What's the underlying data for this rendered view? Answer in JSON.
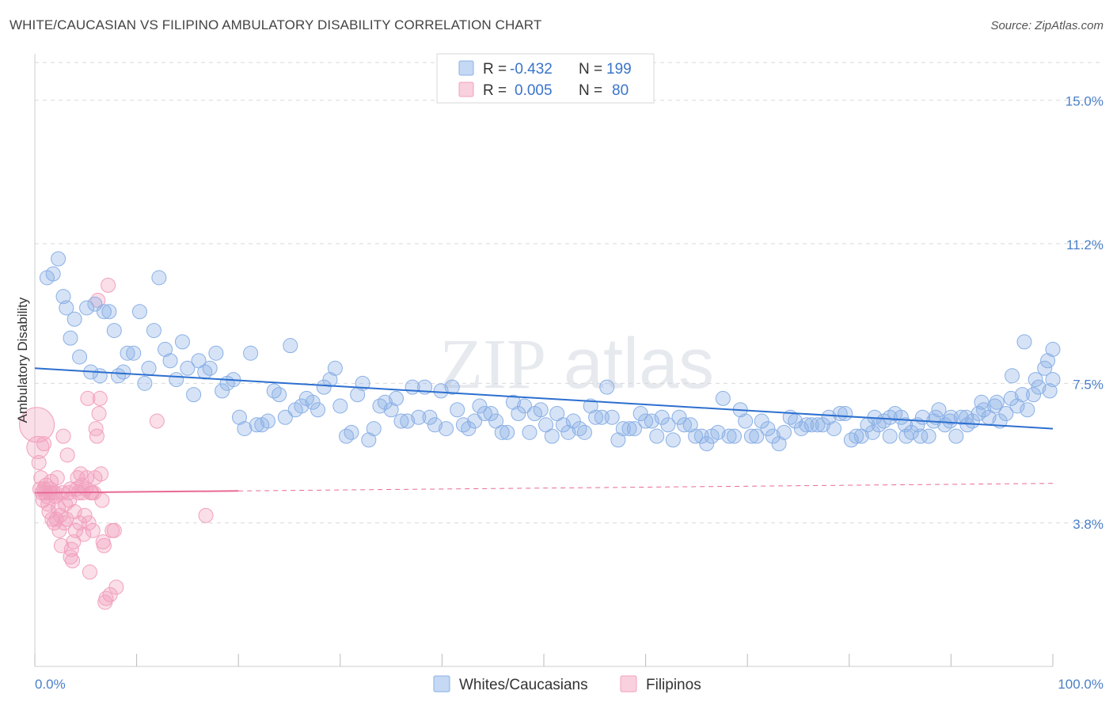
{
  "header": {
    "title": "WHITE/CAUCASIAN VS FILIPINO AMBULATORY DISABILITY CORRELATION CHART",
    "source": "Source: ZipAtlas.com"
  },
  "watermark": {
    "zip": "ZIP",
    "atlas": "atlas"
  },
  "legend": {
    "rows": [
      {
        "r_label": "R =",
        "r_value": "-0.432",
        "n_label": "N =",
        "n_value": "199",
        "color": "#8ab0e6"
      },
      {
        "r_label": "R =",
        "r_value": "0.005",
        "n_label": "N =",
        "n_value": "80",
        "color": "#f2a0bc"
      }
    ]
  },
  "bottom_legend": [
    {
      "label": "Whites/Caucasians",
      "color": "#8ab0e6"
    },
    {
      "label": "Filipinos",
      "color": "#f2a0bc"
    }
  ],
  "chart_data": {
    "type": "scatter",
    "title": "WHITE/CAUCASIAN VS FILIPINO AMBULATORY DISABILITY CORRELATION CHART",
    "xlabel": "",
    "ylabel": "Ambulatory Disability",
    "xlim": [
      0,
      100
    ],
    "ylim": [
      0,
      16
    ],
    "x_tick_labels": [
      "0.0%",
      "100.0%"
    ],
    "y_ticks": [
      3.8,
      7.5,
      11.2,
      15.0
    ],
    "y_tick_labels": [
      "3.8%",
      "7.5%",
      "11.2%",
      "15.0%"
    ],
    "grid": "horizontal-dashed",
    "legend_position": "top-center",
    "series": [
      {
        "name": "Whites/Caucasians",
        "color": "#8ab0e6",
        "line_color": "#2c6fcf",
        "trend": {
          "x": [
            0,
            100
          ],
          "y": [
            7.9,
            6.3
          ]
        },
        "points": [
          [
            1.2,
            10.3
          ],
          [
            1.8,
            10.4
          ],
          [
            2.3,
            10.8
          ],
          [
            2.8,
            9.8
          ],
          [
            3.1,
            9.5
          ],
          [
            3.5,
            8.7
          ],
          [
            3.9,
            9.2
          ],
          [
            4.4,
            8.2
          ],
          [
            5.1,
            9.5
          ],
          [
            5.5,
            7.8
          ],
          [
            5.9,
            9.6
          ],
          [
            6.4,
            7.7
          ],
          [
            6.8,
            9.4
          ],
          [
            7.3,
            9.4
          ],
          [
            7.8,
            8.9
          ],
          [
            8.2,
            7.7
          ],
          [
            8.7,
            7.8
          ],
          [
            9.1,
            8.3
          ],
          [
            9.7,
            8.3
          ],
          [
            10.3,
            9.4
          ],
          [
            10.8,
            7.5
          ],
          [
            11.2,
            7.9
          ],
          [
            11.7,
            8.9
          ],
          [
            12.2,
            10.3
          ],
          [
            12.8,
            8.4
          ],
          [
            13.3,
            8.1
          ],
          [
            13.9,
            7.6
          ],
          [
            14.5,
            8.6
          ],
          [
            15.0,
            7.9
          ],
          [
            15.6,
            7.2
          ],
          [
            16.1,
            8.1
          ],
          [
            16.7,
            7.8
          ],
          [
            17.2,
            7.9
          ],
          [
            17.8,
            8.3
          ],
          [
            18.4,
            7.3
          ],
          [
            18.9,
            7.5
          ],
          [
            19.5,
            7.6
          ],
          [
            20.1,
            6.6
          ],
          [
            20.6,
            6.3
          ],
          [
            21.2,
            8.3
          ],
          [
            21.8,
            6.4
          ],
          [
            22.3,
            6.4
          ],
          [
            22.9,
            6.5
          ],
          [
            23.5,
            7.3
          ],
          [
            24.0,
            7.2
          ],
          [
            24.6,
            6.6
          ],
          [
            25.1,
            8.5
          ],
          [
            25.6,
            6.8
          ],
          [
            26.2,
            6.9
          ],
          [
            26.7,
            7.1
          ],
          [
            27.3,
            7.0
          ],
          [
            27.8,
            6.8
          ],
          [
            28.4,
            7.4
          ],
          [
            29.0,
            7.6
          ],
          [
            29.5,
            7.9
          ],
          [
            30.0,
            6.9
          ],
          [
            30.6,
            6.1
          ],
          [
            31.1,
            6.2
          ],
          [
            31.7,
            7.2
          ],
          [
            32.2,
            7.5
          ],
          [
            32.8,
            6.0
          ],
          [
            33.3,
            6.3
          ],
          [
            33.9,
            6.9
          ],
          [
            34.4,
            7.0
          ],
          [
            35.0,
            6.8
          ],
          [
            35.5,
            7.1
          ],
          [
            36.0,
            6.5
          ],
          [
            36.6,
            6.5
          ],
          [
            37.1,
            7.4
          ],
          [
            37.7,
            6.6
          ],
          [
            38.3,
            7.4
          ],
          [
            38.8,
            6.6
          ],
          [
            39.3,
            6.4
          ],
          [
            39.9,
            7.3
          ],
          [
            40.4,
            6.3
          ],
          [
            41.0,
            7.4
          ],
          [
            41.5,
            6.8
          ],
          [
            42.1,
            6.4
          ],
          [
            42.6,
            6.3
          ],
          [
            43.2,
            6.5
          ],
          [
            43.7,
            6.9
          ],
          [
            44.2,
            6.7
          ],
          [
            44.8,
            6.7
          ],
          [
            45.3,
            6.5
          ],
          [
            45.9,
            6.2
          ],
          [
            46.4,
            6.2
          ],
          [
            47.0,
            7.0
          ],
          [
            47.5,
            6.7
          ],
          [
            48.1,
            6.9
          ],
          [
            48.6,
            6.2
          ],
          [
            49.1,
            6.7
          ],
          [
            49.7,
            6.8
          ],
          [
            50.2,
            6.4
          ],
          [
            50.8,
            6.1
          ],
          [
            51.3,
            6.7
          ],
          [
            51.9,
            6.4
          ],
          [
            52.4,
            6.2
          ],
          [
            52.9,
            6.5
          ],
          [
            53.5,
            6.3
          ],
          [
            54.0,
            6.2
          ],
          [
            54.6,
            6.9
          ],
          [
            55.1,
            6.6
          ],
          [
            55.7,
            6.6
          ],
          [
            56.2,
            7.4
          ],
          [
            56.7,
            6.6
          ],
          [
            57.3,
            6.0
          ],
          [
            57.8,
            6.3
          ],
          [
            58.4,
            6.3
          ],
          [
            58.9,
            6.3
          ],
          [
            59.5,
            6.7
          ],
          [
            60.0,
            6.5
          ],
          [
            60.6,
            6.5
          ],
          [
            61.1,
            6.1
          ],
          [
            61.6,
            6.6
          ],
          [
            62.2,
            6.4
          ],
          [
            62.7,
            6.0
          ],
          [
            63.3,
            6.6
          ],
          [
            63.8,
            6.4
          ],
          [
            64.4,
            6.4
          ],
          [
            64.9,
            6.1
          ],
          [
            65.5,
            6.1
          ],
          [
            66.0,
            5.9
          ],
          [
            66.5,
            6.1
          ],
          [
            67.1,
            6.2
          ],
          [
            67.6,
            7.1
          ],
          [
            68.2,
            6.1
          ],
          [
            68.7,
            6.1
          ],
          [
            69.3,
            6.8
          ],
          [
            69.8,
            6.5
          ],
          [
            70.4,
            6.1
          ],
          [
            70.9,
            6.1
          ],
          [
            71.4,
            6.5
          ],
          [
            72.0,
            6.3
          ],
          [
            72.5,
            6.1
          ],
          [
            73.1,
            5.9
          ],
          [
            73.6,
            6.2
          ],
          [
            74.2,
            6.6
          ],
          [
            74.7,
            6.5
          ],
          [
            75.3,
            6.3
          ],
          [
            75.8,
            6.4
          ],
          [
            76.3,
            6.4
          ],
          [
            76.9,
            6.4
          ],
          [
            77.4,
            6.4
          ],
          [
            78.0,
            6.6
          ],
          [
            78.5,
            6.3
          ],
          [
            79.1,
            6.7
          ],
          [
            79.6,
            6.7
          ],
          [
            80.2,
            6.0
          ],
          [
            80.7,
            6.1
          ],
          [
            81.2,
            6.1
          ],
          [
            81.8,
            6.4
          ],
          [
            82.3,
            6.2
          ],
          [
            82.9,
            6.4
          ],
          [
            83.4,
            6.5
          ],
          [
            84.0,
            6.1
          ],
          [
            84.5,
            6.7
          ],
          [
            85.1,
            6.6
          ],
          [
            85.6,
            6.1
          ],
          [
            86.1,
            6.2
          ],
          [
            86.7,
            6.4
          ],
          [
            87.2,
            6.6
          ],
          [
            87.8,
            6.1
          ],
          [
            88.3,
            6.5
          ],
          [
            88.8,
            6.8
          ],
          [
            89.4,
            6.4
          ],
          [
            89.9,
            6.5
          ],
          [
            90.5,
            6.1
          ],
          [
            91.0,
            6.6
          ],
          [
            91.6,
            6.4
          ],
          [
            92.1,
            6.5
          ],
          [
            92.7,
            6.7
          ],
          [
            93.2,
            6.8
          ],
          [
            93.7,
            6.6
          ],
          [
            94.3,
            6.9
          ],
          [
            94.8,
            6.5
          ],
          [
            95.4,
            6.7
          ],
          [
            95.9,
            7.1
          ],
          [
            96.5,
            6.9
          ],
          [
            97.0,
            7.2
          ],
          [
            97.5,
            6.8
          ],
          [
            98.1,
            7.2
          ],
          [
            98.6,
            7.4
          ],
          [
            99.2,
            7.9
          ],
          [
            99.7,
            7.3
          ],
          [
            100.0,
            7.6
          ],
          [
            100.0,
            8.4
          ],
          [
            99.5,
            8.1
          ],
          [
            98.3,
            7.6
          ],
          [
            97.2,
            8.6
          ],
          [
            96.0,
            7.7
          ],
          [
            94.5,
            7.0
          ],
          [
            93.0,
            7.0
          ],
          [
            91.5,
            6.6
          ],
          [
            90.0,
            6.6
          ],
          [
            88.5,
            6.6
          ],
          [
            87.0,
            6.1
          ],
          [
            85.5,
            6.4
          ],
          [
            84.0,
            6.6
          ],
          [
            82.5,
            6.6
          ]
        ]
      },
      {
        "name": "Filipinos",
        "color": "#f2a0bc",
        "line_color": "#e86a94",
        "trend": {
          "x": [
            0,
            20
          ],
          "y": [
            4.6,
            4.65
          ],
          "dashed_to": [
            100,
            4.85
          ]
        },
        "points": [
          [
            0.2,
            6.4
          ],
          [
            0.3,
            5.8
          ],
          [
            0.4,
            5.4
          ],
          [
            0.5,
            4.7
          ],
          [
            0.6,
            5.0
          ],
          [
            0.7,
            4.6
          ],
          [
            0.8,
            4.4
          ],
          [
            0.9,
            4.7
          ],
          [
            1.0,
            4.6
          ],
          [
            1.1,
            4.8
          ],
          [
            1.2,
            4.5
          ],
          [
            1.3,
            4.3
          ],
          [
            1.4,
            4.1
          ],
          [
            1.5,
            4.7
          ],
          [
            1.6,
            4.9
          ],
          [
            1.7,
            3.9
          ],
          [
            1.8,
            4.6
          ],
          [
            1.9,
            3.8
          ],
          [
            2.0,
            4.6
          ],
          [
            2.1,
            3.9
          ],
          [
            2.2,
            5.0
          ],
          [
            2.3,
            4.2
          ],
          [
            2.4,
            3.6
          ],
          [
            2.5,
            4.0
          ],
          [
            2.6,
            3.2
          ],
          [
            2.7,
            4.6
          ],
          [
            2.8,
            6.1
          ],
          [
            2.9,
            3.8
          ],
          [
            3.0,
            4.3
          ],
          [
            3.1,
            3.9
          ],
          [
            3.2,
            5.6
          ],
          [
            3.3,
            4.6
          ],
          [
            3.4,
            4.4
          ],
          [
            3.5,
            2.9
          ],
          [
            3.6,
            3.1
          ],
          [
            3.7,
            2.8
          ],
          [
            3.8,
            3.3
          ],
          [
            3.9,
            4.1
          ],
          [
            4.0,
            3.6
          ],
          [
            4.1,
            4.7
          ],
          [
            4.2,
            5.0
          ],
          [
            4.3,
            4.6
          ],
          [
            4.4,
            3.8
          ],
          [
            4.5,
            5.1
          ],
          [
            4.6,
            4.8
          ],
          [
            4.7,
            4.6
          ],
          [
            4.8,
            3.5
          ],
          [
            4.9,
            4.0
          ],
          [
            5.0,
            4.7
          ],
          [
            5.1,
            5.0
          ],
          [
            5.2,
            7.1
          ],
          [
            5.3,
            3.8
          ],
          [
            5.4,
            2.5
          ],
          [
            5.5,
            4.6
          ],
          [
            5.6,
            4.6
          ],
          [
            5.7,
            3.6
          ],
          [
            5.8,
            4.6
          ],
          [
            5.9,
            5.0
          ],
          [
            6.0,
            6.3
          ],
          [
            6.1,
            6.1
          ],
          [
            6.2,
            9.7
          ],
          [
            6.3,
            6.7
          ],
          [
            6.4,
            7.1
          ],
          [
            6.5,
            5.1
          ],
          [
            6.6,
            4.4
          ],
          [
            6.7,
            3.3
          ],
          [
            6.8,
            3.2
          ],
          [
            6.9,
            1.7
          ],
          [
            7.0,
            1.8
          ],
          [
            7.2,
            10.1
          ],
          [
            7.4,
            1.9
          ],
          [
            7.6,
            3.6
          ],
          [
            7.8,
            3.6
          ],
          [
            8.0,
            2.1
          ],
          [
            12.0,
            6.5
          ],
          [
            16.8,
            4.0
          ],
          [
            1.5,
            4.6
          ],
          [
            2.0,
            4.5
          ],
          [
            3.5,
            4.7
          ],
          [
            0.9,
            5.9
          ]
        ]
      }
    ]
  }
}
